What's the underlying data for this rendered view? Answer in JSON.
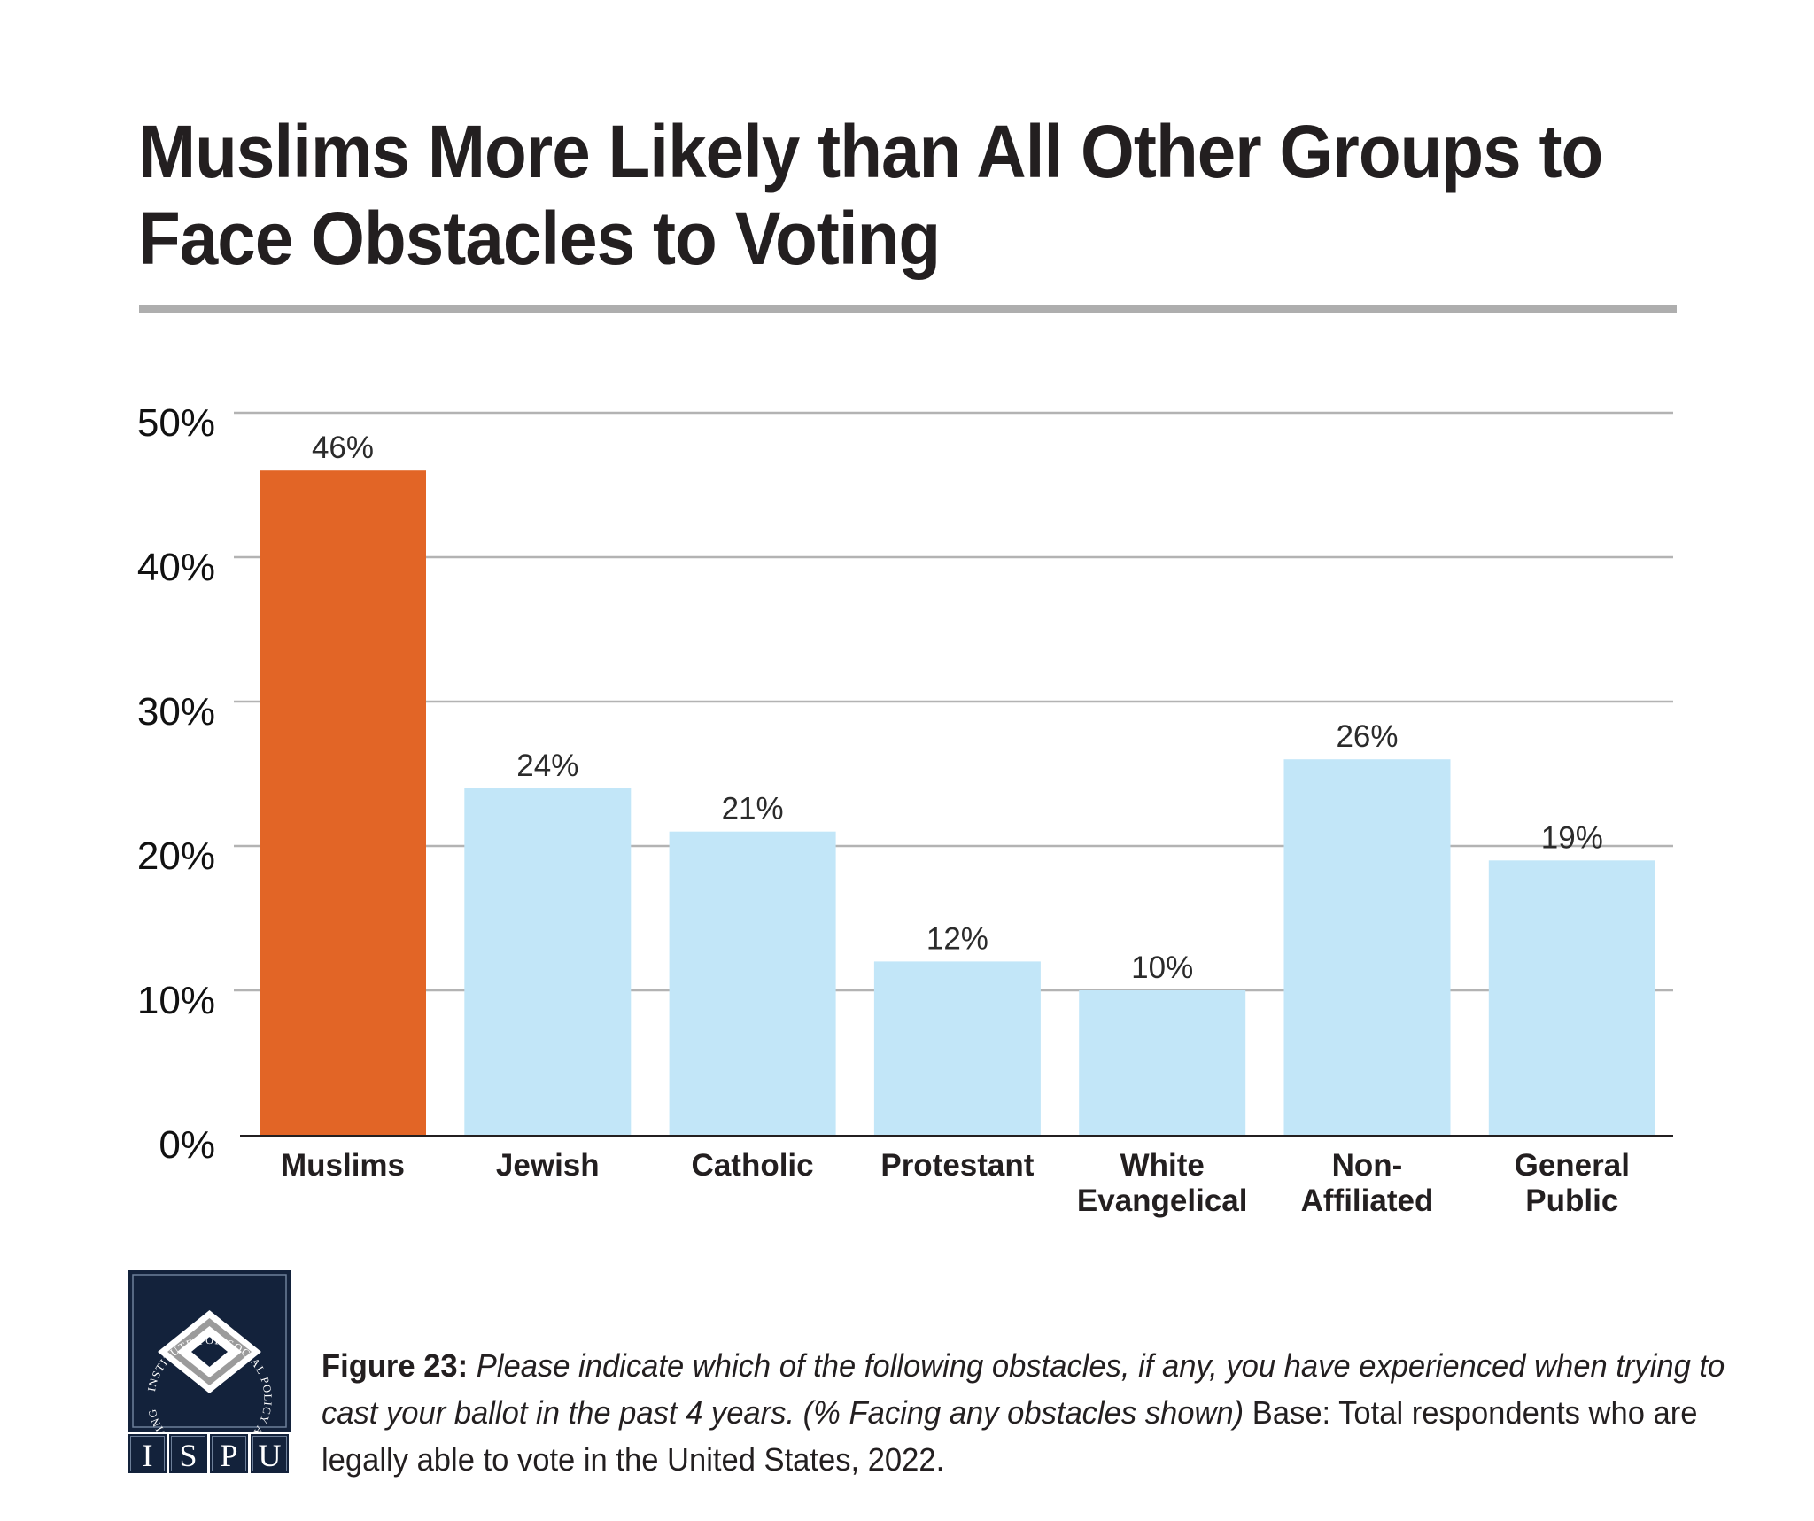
{
  "title": {
    "line1": "Muslims More Likely than All Other Groups to",
    "line2": "Face Obstacles to Voting"
  },
  "colors": {
    "highlight_bar": "#e26526",
    "default_bar": "#c2e6f8",
    "gridline": "#b3b3b3",
    "axis": "#231f20",
    "rule": "#aeaeae",
    "logo_navy": "#13223b"
  },
  "chart_data": {
    "type": "bar",
    "title": "Muslims More Likely than All Other Groups to Face Obstacles to Voting",
    "xlabel": "",
    "ylabel": "",
    "ylim": [
      0,
      50
    ],
    "yticks": [
      0,
      10,
      20,
      30,
      40,
      50
    ],
    "ytick_labels": [
      "0%",
      "10%",
      "20%",
      "30%",
      "40%",
      "50%"
    ],
    "grid": true,
    "legend": "none",
    "categories": [
      [
        "Muslims"
      ],
      [
        "Jewish"
      ],
      [
        "Catholic"
      ],
      [
        "Protestant"
      ],
      [
        "White",
        "Evangelical"
      ],
      [
        "Non-",
        "Affiliated"
      ],
      [
        "General",
        "Public"
      ]
    ],
    "values": [
      46,
      24,
      21,
      12,
      10,
      26,
      19
    ],
    "value_labels": [
      "46%",
      "24%",
      "21%",
      "12%",
      "10%",
      "26%",
      "19%"
    ],
    "highlighted": [
      true,
      false,
      false,
      false,
      false,
      false,
      false
    ]
  },
  "caption": {
    "figure_label": "Figure 23:",
    "question": "Please indicate which of the following obstacles, if any, you have experienced when trying to cast your ballot in the past 4 years. (% Facing any obstacles shown)",
    "base": "Base: Total respondents who are legally able to vote in the United States, 2022."
  },
  "logo": {
    "ring_text": "INSTITUTE FOR SOCIAL POLICY AND UNDERSTANDING",
    "letters": [
      "I",
      "S",
      "P",
      "U"
    ]
  }
}
